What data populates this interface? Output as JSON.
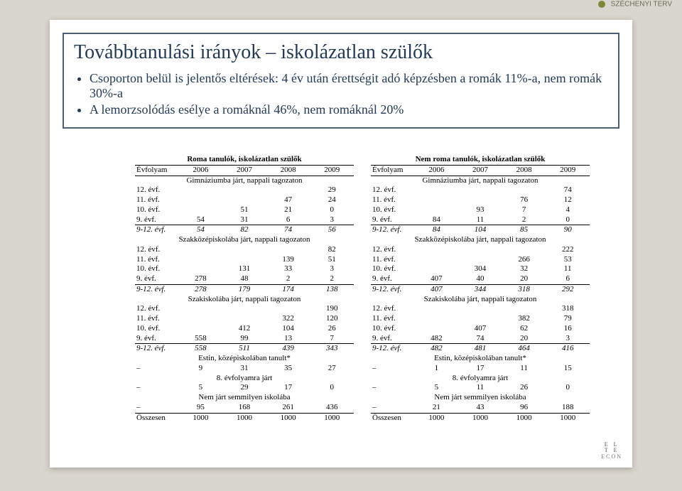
{
  "topbar": {
    "label": "SZÉCHENYI TERV"
  },
  "title": "Továbbtanulási irányok – iskolázatlan szülők",
  "bullets": [
    "Csoporton belül is jelentős eltérések: 4 év után érettségit adó képzésben a romák 11%-a, nem romák 30%-a",
    "A lemorzsolódás esélye a romáknál 46%, nem romáknál 20%"
  ],
  "tables": [
    {
      "caption": "Roma tanulók, iskolázatlan szülők",
      "years": [
        "2006",
        "2007",
        "2008",
        "2009"
      ],
      "evfolyam": "Évfolyam",
      "sections": [
        {
          "title": "Gimnáziumba járt, nappali tagozaton",
          "rows": [
            [
              "12. évf.",
              "",
              "",
              "",
              "29"
            ],
            [
              "11. évf.",
              "",
              "",
              "47",
              "24"
            ],
            [
              "10. évf.",
              "",
              "51",
              "21",
              "0"
            ],
            [
              "9. évf.",
              "54",
              "31",
              "6",
              "3"
            ]
          ],
          "sum": [
            "9-12. évf.",
            "54",
            "82",
            "74",
            "56"
          ]
        },
        {
          "title": "Szakközépiskolába járt, nappali tagozaton",
          "rows": [
            [
              "12. évf.",
              "",
              "",
              "",
              "82"
            ],
            [
              "11. évf.",
              "",
              "",
              "139",
              "51"
            ],
            [
              "10. évf.",
              "",
              "131",
              "33",
              "3"
            ],
            [
              "9. évf.",
              "278",
              "48",
              "2",
              "2"
            ]
          ],
          "sum": [
            "9-12. évf.",
            "278",
            "179",
            "174",
            "138"
          ]
        },
        {
          "title": "Szakiskolába járt, nappali tagozaton",
          "rows": [
            [
              "12. évf.",
              "",
              "",
              "",
              "190"
            ],
            [
              "11. évf.",
              "",
              "",
              "322",
              "120"
            ],
            [
              "10. évf.",
              "",
              "412",
              "104",
              "26"
            ],
            [
              "9. évf.",
              "558",
              "99",
              "13",
              "7"
            ]
          ],
          "sum": [
            "9-12. évf.",
            "558",
            "511",
            "439",
            "343"
          ]
        },
        {
          "title": "Estin, középiskolában tanult*",
          "rows": [
            [
              "–",
              "9",
              "31",
              "35",
              "27"
            ]
          ]
        },
        {
          "title": "8. évfolyamra járt",
          "rows": [
            [
              "–",
              "5",
              "29",
              "17",
              "0"
            ]
          ]
        },
        {
          "title": "Nem járt semmilyen iskolába",
          "rows": [
            [
              "–",
              "95",
              "168",
              "261",
              "436"
            ]
          ]
        }
      ],
      "total": [
        "Összesen",
        "1000",
        "1000",
        "1000",
        "1000"
      ]
    },
    {
      "caption": "Nem roma tanulók, iskolázatlan szülők",
      "years": [
        "2006",
        "2007",
        "2008",
        "2009"
      ],
      "evfolyam": "Évfolyam",
      "sections": [
        {
          "title": "Gimnáziumba járt, nappali tagozaton",
          "rows": [
            [
              "12. évf.",
              "",
              "",
              "",
              "74"
            ],
            [
              "11. évf.",
              "",
              "",
              "76",
              "12"
            ],
            [
              "10. évf.",
              "",
              "93",
              "7",
              "4"
            ],
            [
              "9. évf.",
              "84",
              "11",
              "2",
              "0"
            ]
          ],
          "sum": [
            "9-12. évf.",
            "84",
            "104",
            "85",
            "90"
          ]
        },
        {
          "title": "Szakközépiskolába járt, nappali tagozaton",
          "rows": [
            [
              "12. évf.",
              "",
              "",
              "",
              "222"
            ],
            [
              "11. évf.",
              "",
              "",
              "266",
              "53"
            ],
            [
              "10. évf.",
              "",
              "304",
              "32",
              "11"
            ],
            [
              "9. évf.",
              "407",
              "40",
              "20",
              "6"
            ]
          ],
          "sum": [
            "9-12. évf.",
            "407",
            "344",
            "318",
            "292"
          ]
        },
        {
          "title": "Szakiskolába járt, nappali tagozaton",
          "rows": [
            [
              "12. évf.",
              "",
              "",
              "",
              "318"
            ],
            [
              "11. évf.",
              "",
              "",
              "382",
              "79"
            ],
            [
              "10. évf.",
              "",
              "407",
              "62",
              "16"
            ],
            [
              "9. évf.",
              "482",
              "74",
              "20",
              "3"
            ]
          ],
          "sum": [
            "9-12. évf.",
            "482",
            "481",
            "464",
            "416"
          ]
        },
        {
          "title": "Estin, középiskolában tanult*",
          "rows": [
            [
              "–",
              "1",
              "17",
              "11",
              "15"
            ]
          ]
        },
        {
          "title": "8. évfolyamra járt",
          "rows": [
            [
              "–",
              "5",
              "11",
              "26",
              "0"
            ]
          ]
        },
        {
          "title": "Nem járt semmilyen iskolába",
          "rows": [
            [
              "–",
              "21",
              "43",
              "96",
              "188"
            ]
          ]
        }
      ],
      "total": [
        "Összesen",
        "1000",
        "1000",
        "1000",
        "1000"
      ]
    }
  ],
  "logo": {
    "l1": "E L",
    "l2": "T E",
    "l3": "ECON"
  }
}
